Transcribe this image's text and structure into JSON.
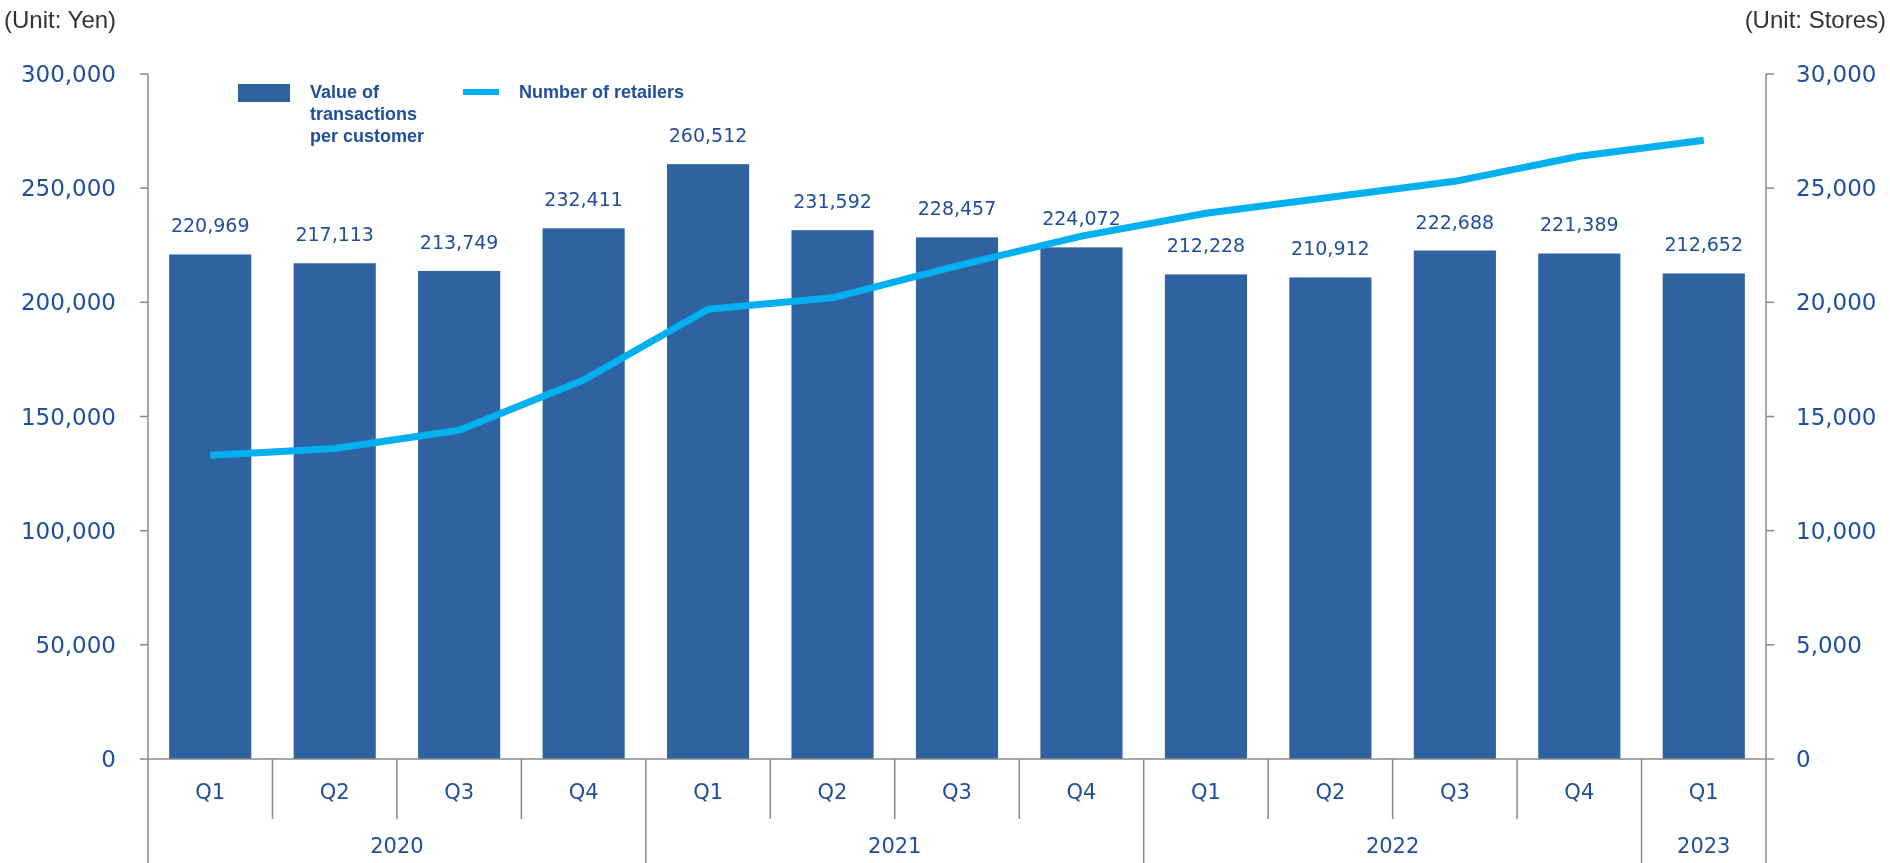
{
  "chart_data": {
    "type": "bar",
    "ylabel": "(Unit: Yen)",
    "y2label": "(Unit: Stores)",
    "categories": [
      "Q1",
      "Q2",
      "Q3",
      "Q4",
      "Q1",
      "Q2",
      "Q3",
      "Q4",
      "Q1",
      "Q2",
      "Q3",
      "Q4",
      "Q1"
    ],
    "series": [
      {
        "name": "Value of transactions per customer",
        "color": "#2e62a0",
        "values": [
          220969,
          217113,
          213749,
          232411,
          260512,
          231592,
          228457,
          224072,
          212228,
          210912,
          222688,
          221389,
          212652
        ],
        "value_labels": [
          "220,969",
          "217,113",
          "213,749",
          "232,411",
          "260,512",
          "231,592",
          "228,457",
          "224,072",
          "212,228",
          "210,912",
          "222,688",
          "221,389",
          "212,652"
        ]
      },
      {
        "name": "Number of retailers",
        "type": "line",
        "axis": "y2",
        "color": "#00b0f0",
        "values": [
          13300,
          13600,
          14400,
          16600,
          19700,
          20200,
          21600,
          22900,
          23900,
          24600,
          25300,
          26400,
          27100
        ]
      }
    ],
    "ylim": [
      0,
      300000
    ],
    "yticks": [
      0,
      {
        "value": 50000,
        "label": "50,000"
      },
      {
        "value": 100000,
        "label": "100,000"
      },
      {
        "value": 150000,
        "label": "150,000"
      },
      {
        "value": 200000,
        "label": "200,000"
      },
      {
        "value": 250000,
        "label": "250,000"
      },
      {
        "value": 300000,
        "label": "300,000"
      }
    ],
    "y2lim": [
      0,
      30000
    ],
    "y2ticks": [
      0,
      {
        "value": 5000,
        "label": "5,000"
      },
      {
        "value": 10000,
        "label": "10,000"
      },
      {
        "value": 15000,
        "label": "15,000"
      },
      {
        "value": 20000,
        "label": "20,000"
      },
      {
        "value": 25000,
        "label": "25,000"
      },
      {
        "value": 30000,
        "label": "30,000"
      }
    ],
    "annotations": [
      "2020",
      "2021",
      "2022",
      "2023"
    ],
    "legend": "top left",
    "grid": false,
    "marker": "none",
    "line_style": "solid"
  }
}
